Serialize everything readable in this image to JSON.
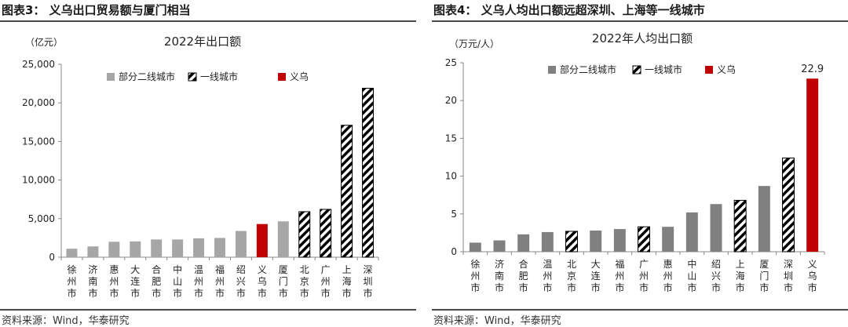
{
  "figures": [
    {
      "fig_title": "图表3：  义乌出口贸易额与厦门相当",
      "source": "资料来源：Wind，华泰研究"
    },
    {
      "fig_title": "图表4：  义乌人均出口额远超深圳、上海等一线城市",
      "source": "资料来源：Wind，华泰研究"
    }
  ],
  "colors": {
    "second_tier": "#a6a6a6",
    "second_tier_right": "#808080",
    "first_tier_hatch": "#000000",
    "yiwu": "#c00000"
  },
  "chart_data": [
    {
      "type": "bar",
      "title": "2022年出口额",
      "unit_label": "（亿元）",
      "ylim": [
        0,
        25000
      ],
      "yticks": [
        "0",
        "5,000",
        "10,000",
        "15,000",
        "20,000",
        "25,000"
      ],
      "ytick_values": [
        0,
        5000,
        10000,
        15000,
        20000,
        25000
      ],
      "grid": false,
      "legend_position": "top-left",
      "legend": [
        {
          "key": "second",
          "label": "部分二线城市"
        },
        {
          "key": "first",
          "label": "一线城市"
        },
        {
          "key": "yiwu",
          "label": "义乌"
        }
      ],
      "categories": [
        "徐州市",
        "济南市",
        "惠州市",
        "大连市",
        "合肥市",
        "中山市",
        "温州市",
        "福州市",
        "绍兴市",
        "义乌市",
        "厦门市",
        "北京市",
        "广州市",
        "上海市",
        "深圳市"
      ],
      "groups": [
        "second",
        "second",
        "second",
        "second",
        "second",
        "second",
        "second",
        "second",
        "second",
        "yiwu",
        "second",
        "first",
        "first",
        "first",
        "first"
      ],
      "values": [
        1100,
        1400,
        2000,
        2050,
        2300,
        2300,
        2450,
        2500,
        3400,
        4300,
        4650,
        5900,
        6200,
        17100,
        21900
      ]
    },
    {
      "type": "bar",
      "title": "2022年人均出口额",
      "unit_label": "（万元/人）",
      "ylim": [
        0,
        25
      ],
      "yticks": [
        "0",
        "5",
        "10",
        "15",
        "20",
        "25"
      ],
      "ytick_values": [
        0,
        5,
        10,
        15,
        20,
        25
      ],
      "grid": false,
      "legend_position": "top-left",
      "legend": [
        {
          "key": "second",
          "label": "部分二线城市"
        },
        {
          "key": "first",
          "label": "一线城市"
        },
        {
          "key": "yiwu",
          "label": "义乌"
        }
      ],
      "categories": [
        "徐州市",
        "济南市",
        "合肥市",
        "温州市",
        "北京市",
        "大连市",
        "福州市",
        "广州市",
        "惠州市",
        "中山市",
        "绍兴市",
        "上海市",
        "厦门市",
        "深圳市",
        "义乌市"
      ],
      "groups": [
        "second",
        "second",
        "second",
        "second",
        "first",
        "second",
        "second",
        "first",
        "second",
        "second",
        "second",
        "first",
        "second",
        "first",
        "yiwu"
      ],
      "values": [
        1.2,
        1.5,
        2.3,
        2.6,
        2.7,
        2.8,
        3.0,
        3.3,
        3.3,
        5.2,
        6.3,
        6.8,
        8.7,
        12.4,
        22.9
      ],
      "data_labels": [
        {
          "index": 14,
          "text": "22.9"
        }
      ]
    }
  ]
}
